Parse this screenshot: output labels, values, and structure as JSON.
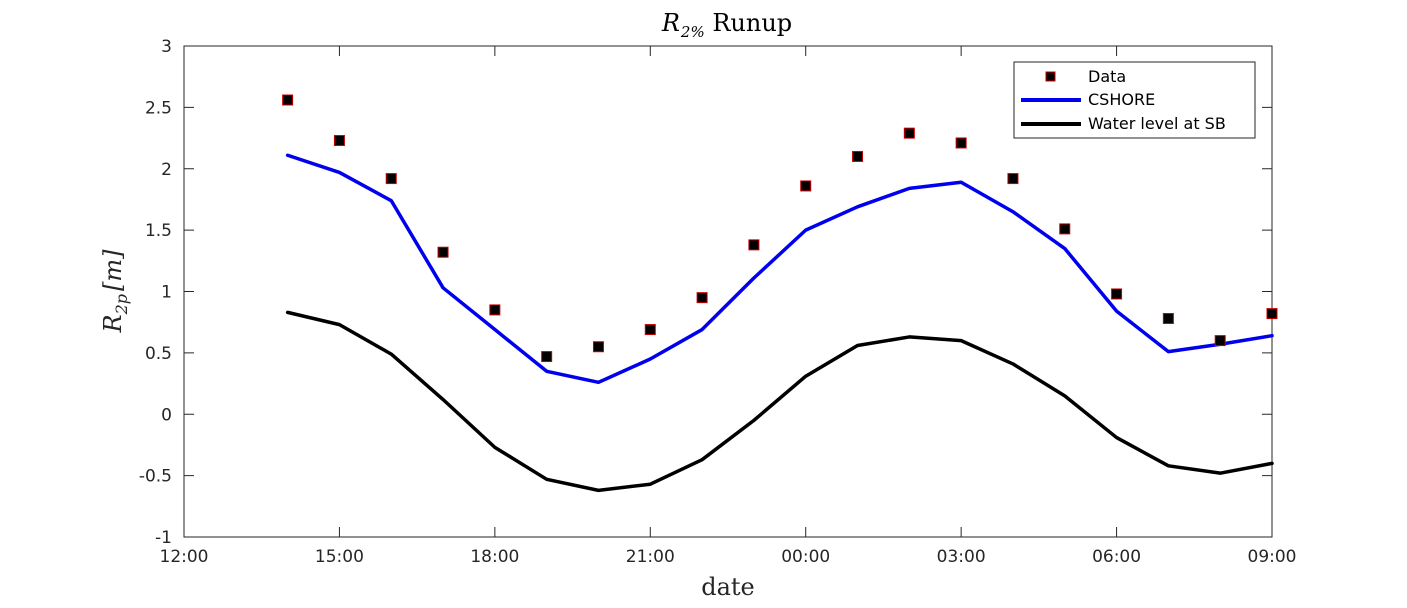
{
  "chart_data": {
    "type": "line",
    "title_main": "R",
    "title_sub": "2%",
    "title_rest": " Runup",
    "xlabel": "date",
    "ylabel_main": "R",
    "ylabel_sub": "2p",
    "ylabel_rest": "[m]",
    "x_tick_labels": [
      "12:00",
      "15:00",
      "18:00",
      "21:00",
      "00:00",
      "03:00",
      "06:00",
      "09:00"
    ],
    "y_tick_labels": [
      "-1",
      "-0.5",
      "0",
      "0.5",
      "1",
      "1.5",
      "2",
      "2.5",
      "3"
    ],
    "ylim": [
      -1,
      3
    ],
    "xlim_hours": [
      12,
      33
    ],
    "x_hours": [
      14,
      15,
      16,
      17,
      18,
      19,
      20,
      21,
      22,
      23,
      24,
      25,
      26,
      27,
      28,
      29,
      30,
      31,
      32,
      33
    ],
    "grid": false,
    "legend_position": "top-right",
    "series": [
      {
        "name": "Data",
        "style": "marker",
        "color": "#000000",
        "edge_color": "#cc0000",
        "values": [
          2.56,
          2.23,
          1.92,
          1.32,
          0.85,
          0.47,
          0.55,
          0.69,
          0.95,
          1.38,
          1.86,
          2.1,
          2.29,
          2.21,
          1.92,
          1.51,
          0.98,
          0.78,
          0.6,
          0.82
        ]
      },
      {
        "name": "CSHORE",
        "style": "line",
        "color": "#0000ee",
        "values": [
          2.11,
          1.97,
          1.74,
          1.03,
          0.69,
          0.35,
          0.26,
          0.45,
          0.69,
          1.11,
          1.5,
          1.69,
          1.84,
          1.89,
          1.65,
          1.35,
          0.84,
          0.51,
          0.57,
          0.64
        ]
      },
      {
        "name": "Water level at SB",
        "style": "line",
        "color": "#000000",
        "values": [
          0.83,
          0.73,
          0.49,
          0.12,
          -0.27,
          -0.53,
          -0.62,
          -0.57,
          -0.37,
          -0.05,
          0.31,
          0.56,
          0.63,
          0.6,
          0.41,
          0.15,
          -0.19,
          -0.42,
          -0.48,
          -0.4
        ]
      }
    ]
  }
}
